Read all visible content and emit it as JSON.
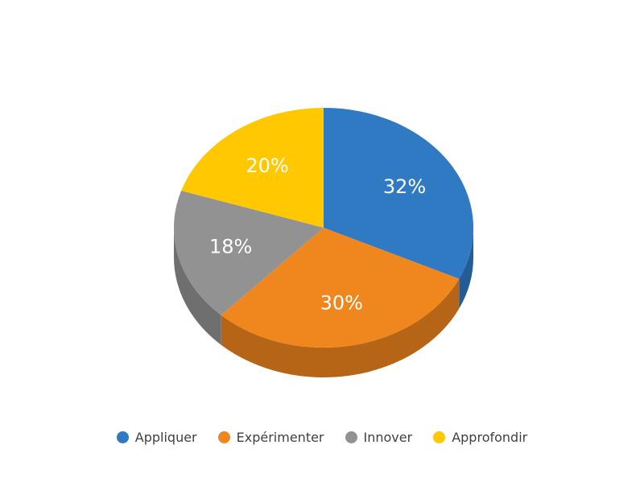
{
  "chart_data": {
    "type": "pie",
    "is_3d": true,
    "categories": [
      "Appliquer",
      "Expérimenter",
      "Innover",
      "Approfondir"
    ],
    "values": [
      32,
      30,
      18,
      20
    ],
    "value_labels": [
      "32%",
      "30%",
      "18%",
      "20%"
    ],
    "colors": [
      "#3079C3",
      "#F0861E",
      "#929292",
      "#FFC800"
    ],
    "side_colors": [
      "#245C95",
      "#B66517",
      "#6F6F6F",
      "#C29800"
    ],
    "legend_position": "bottom",
    "title": ""
  }
}
